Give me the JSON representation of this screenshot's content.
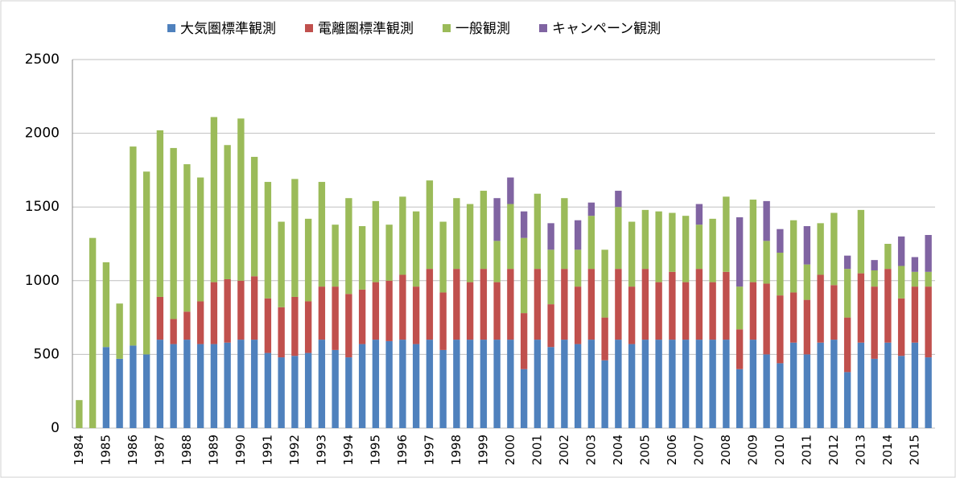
{
  "chart_data": {
    "type": "stacked-bar",
    "categories": [
      "1984",
      null,
      "1985",
      null,
      "1986",
      null,
      "1987",
      null,
      "1988",
      null,
      "1989",
      null,
      "1990",
      null,
      "1991",
      null,
      "1992",
      null,
      "1993",
      null,
      "1994",
      null,
      "1995",
      null,
      "1996",
      null,
      "1997",
      null,
      "1998",
      null,
      "1999",
      null,
      "2000",
      null,
      "2001",
      null,
      "2002",
      null,
      "2003",
      null,
      "2004",
      null,
      "2005",
      null,
      "2006",
      null,
      "2007",
      null,
      "2008",
      null,
      "2009",
      null,
      "2010",
      null,
      "2011",
      null,
      "2012",
      null,
      "2013",
      null,
      "2014",
      null,
      "2015",
      null
    ],
    "series": [
      {
        "name": "大気圏標準観測",
        "color": "#4f81bd",
        "values": [
          0,
          0,
          550,
          470,
          560,
          500,
          600,
          570,
          600,
          570,
          570,
          580,
          600,
          600,
          510,
          480,
          490,
          510,
          600,
          530,
          480,
          570,
          600,
          590,
          600,
          570,
          600,
          530,
          600,
          600,
          600,
          600,
          600,
          400,
          600,
          550,
          600,
          570,
          600,
          460,
          600,
          570,
          600,
          600,
          600,
          600,
          600,
          600,
          600,
          400,
          600,
          500,
          440,
          580,
          500,
          580,
          600,
          380,
          580,
          470,
          580,
          490,
          580,
          480
        ]
      },
      {
        "name": "電離圏標準観測",
        "color": "#c0504d",
        "values": [
          0,
          0,
          0,
          0,
          0,
          0,
          290,
          170,
          190,
          290,
          420,
          430,
          400,
          430,
          370,
          340,
          400,
          350,
          360,
          430,
          430,
          370,
          390,
          410,
          440,
          390,
          480,
          390,
          480,
          390,
          480,
          390,
          480,
          380,
          480,
          290,
          480,
          390,
          480,
          290,
          480,
          390,
          480,
          390,
          460,
          390,
          480,
          390,
          460,
          270,
          390,
          480,
          460,
          340,
          370,
          460,
          370,
          370,
          470,
          490,
          500,
          390,
          380,
          480
        ]
      },
      {
        "name": "一般観測",
        "color": "#9bbb59",
        "values": [
          190,
          1290,
          575,
          375,
          1350,
          1240,
          1130,
          1160,
          1000,
          840,
          1120,
          910,
          1100,
          810,
          790,
          580,
          800,
          560,
          710,
          420,
          650,
          430,
          550,
          380,
          530,
          510,
          600,
          480,
          480,
          530,
          530,
          280,
          440,
          510,
          510,
          370,
          480,
          250,
          360,
          460,
          420,
          440,
          400,
          480,
          400,
          450,
          300,
          430,
          510,
          290,
          560,
          290,
          290,
          490,
          240,
          350,
          490,
          330,
          430,
          110,
          170,
          220,
          100,
          100
        ]
      },
      {
        "name": "キャンペーン観測",
        "color": "#8064a2",
        "values": [
          0,
          0,
          0,
          0,
          0,
          0,
          0,
          0,
          0,
          0,
          0,
          0,
          0,
          0,
          0,
          0,
          0,
          0,
          0,
          0,
          0,
          0,
          0,
          0,
          0,
          0,
          0,
          0,
          0,
          0,
          0,
          290,
          180,
          180,
          0,
          180,
          0,
          200,
          90,
          0,
          110,
          0,
          0,
          0,
          0,
          0,
          140,
          0,
          0,
          470,
          0,
          270,
          160,
          0,
          260,
          0,
          0,
          90,
          0,
          70,
          0,
          200,
          100,
          250
        ]
      }
    ],
    "ylim": [
      0,
      2500
    ],
    "yticks": [
      0,
      500,
      1000,
      1500,
      2000,
      2500
    ],
    "grid": true,
    "legend": "top"
  }
}
